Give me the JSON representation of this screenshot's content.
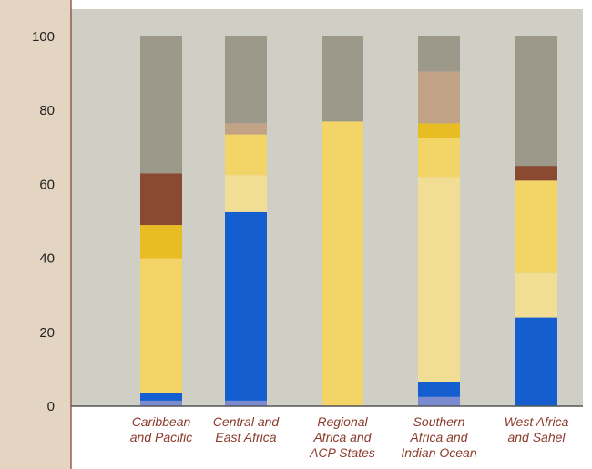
{
  "chart_data": {
    "type": "bar",
    "stacked": true,
    "categories": [
      [
        "Caribbean",
        "and Pacific"
      ],
      [
        "Central and",
        "East Africa"
      ],
      [
        "Regional",
        "Africa and",
        "ACP States"
      ],
      [
        "Southern",
        "Africa and",
        "Indian Ocean"
      ],
      [
        "West Africa",
        "and Sahel"
      ]
    ],
    "ylim": [
      0,
      100
    ],
    "yticks": [
      0,
      20,
      40,
      60,
      80,
      100
    ],
    "grid": false,
    "legend": "none",
    "title": "",
    "xlabel": "",
    "ylabel": "",
    "series": [
      {
        "color": "#7a8bd0",
        "values": [
          1.5,
          1.5,
          0,
          2.5,
          0
        ]
      },
      {
        "color": "#145ed0",
        "values": [
          2,
          51,
          0,
          4,
          24
        ]
      },
      {
        "color": "#f2dd94",
        "values": [
          0,
          10,
          0,
          55.5,
          12
        ]
      },
      {
        "color": "#f3d466",
        "values": [
          36.5,
          11,
          77,
          10.5,
          25
        ]
      },
      {
        "color": "#e8bd24",
        "values": [
          9,
          0,
          0,
          4,
          0
        ]
      },
      {
        "color": "#c3a385",
        "values": [
          0,
          3,
          0,
          14,
          0
        ]
      },
      {
        "color": "#8a4a32",
        "values": [
          14,
          0,
          0,
          0,
          4
        ]
      },
      {
        "color": "#9c998a",
        "values": [
          37,
          23.5,
          23,
          9.5,
          35
        ]
      }
    ]
  },
  "colors": {
    "plot_background": "#cfcfc6",
    "axis_background": "#e3d5c1",
    "axis_line": "#8b3a2a",
    "baseline": "#555555",
    "category_text": "#8b3a2a"
  }
}
